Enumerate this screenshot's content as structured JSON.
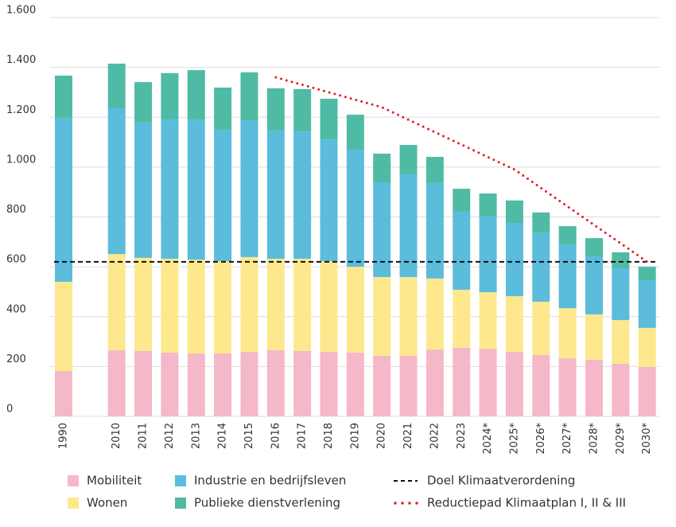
{
  "chart_data": {
    "type": "stacked-bar",
    "categories": [
      "1990",
      null,
      "2010",
      "2011",
      "2012",
      "2013",
      "2014",
      "2015",
      "2016",
      "2017",
      "2018",
      "2019",
      "2020",
      "2021",
      "2022",
      "2023",
      "2024*",
      "2025*",
      "2026*",
      "2027*",
      "2028*",
      "2029*",
      "2030*"
    ],
    "series": [
      {
        "name": "Mobiliteit",
        "color": "#f4b8c8",
        "values": [
          182,
          null,
          265,
          262,
          256,
          252,
          252,
          259,
          265,
          262,
          259,
          256,
          243,
          243,
          268,
          275,
          271,
          259,
          246,
          233,
          227,
          211,
          198
        ]
      },
      {
        "name": "Wonen",
        "color": "#fde88e",
        "values": [
          358,
          null,
          386,
          374,
          376,
          377,
          371,
          380,
          367,
          370,
          364,
          344,
          316,
          316,
          285,
          233,
          227,
          223,
          214,
          201,
          182,
          175,
          157
        ]
      },
      {
        "name": "Industrie en bedrijfsleven",
        "color": "#5bbcdc",
        "values": [
          655,
          null,
          585,
          543,
          559,
          562,
          527,
          549,
          515,
          511,
          488,
          470,
          380,
          412,
          383,
          313,
          304,
          294,
          275,
          256,
          233,
          208,
          191
        ]
      },
      {
        "name": "Publieke dienstverlening",
        "color": "#4fbba5",
        "values": [
          172,
          null,
          179,
          162,
          186,
          198,
          169,
          192,
          169,
          170,
          163,
          140,
          115,
          118,
          105,
          92,
          92,
          90,
          83,
          73,
          73,
          64,
          54
        ]
      }
    ],
    "target": {
      "name": "Doel Klimaatverordening",
      "color": "#111111",
      "value": 620
    },
    "reduction_path": {
      "name": "Reductiepad Klimaatplan I, II & III",
      "color": "#e3202a",
      "x": [
        "2016",
        "2020",
        "2025*",
        "2030*"
      ],
      "values": [
        1360,
        1240,
        990,
        620
      ]
    },
    "ylim": [
      0,
      1600
    ],
    "yticks": [
      0,
      200,
      400,
      600,
      800,
      {
        "value": 1000,
        "label": "1.000"
      },
      {
        "value": 1200,
        "label": "1.200"
      },
      {
        "value": 1400,
        "label": "1.400"
      },
      {
        "value": 1600,
        "label": "1.600"
      }
    ],
    "grid": true
  }
}
